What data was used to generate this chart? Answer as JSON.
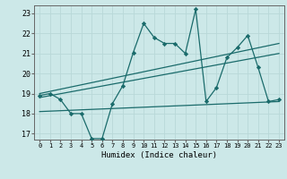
{
  "xlabel": "Humidex (Indice chaleur)",
  "bg_color": "#cce8e8",
  "line_color": "#1a6b6b",
  "grid_color": "#b8d8d8",
  "xlim": [
    -0.5,
    23.5
  ],
  "ylim": [
    16.7,
    23.4
  ],
  "yticks": [
    17,
    18,
    19,
    20,
    21,
    22,
    23
  ],
  "xticks": [
    0,
    1,
    2,
    3,
    4,
    5,
    6,
    7,
    8,
    9,
    10,
    11,
    12,
    13,
    14,
    15,
    16,
    17,
    18,
    19,
    20,
    21,
    22,
    23
  ],
  "main_x": [
    0,
    1,
    2,
    3,
    4,
    5,
    6,
    7,
    8,
    9,
    10,
    11,
    12,
    13,
    14,
    15,
    16,
    17,
    18,
    19,
    20,
    21,
    22,
    23
  ],
  "main_y": [
    18.9,
    19.0,
    18.7,
    18.0,
    18.0,
    16.75,
    16.75,
    18.5,
    19.4,
    21.05,
    22.5,
    21.8,
    21.5,
    21.5,
    21.0,
    23.2,
    18.6,
    19.3,
    20.8,
    21.3,
    21.9,
    20.3,
    18.6,
    18.7
  ],
  "trend1_x": [
    0,
    23
  ],
  "trend1_y": [
    19.0,
    21.5
  ],
  "trend2_x": [
    0,
    23
  ],
  "trend2_y": [
    18.8,
    21.0
  ],
  "trend3_x": [
    0,
    23
  ],
  "trend3_y": [
    18.1,
    18.6
  ]
}
